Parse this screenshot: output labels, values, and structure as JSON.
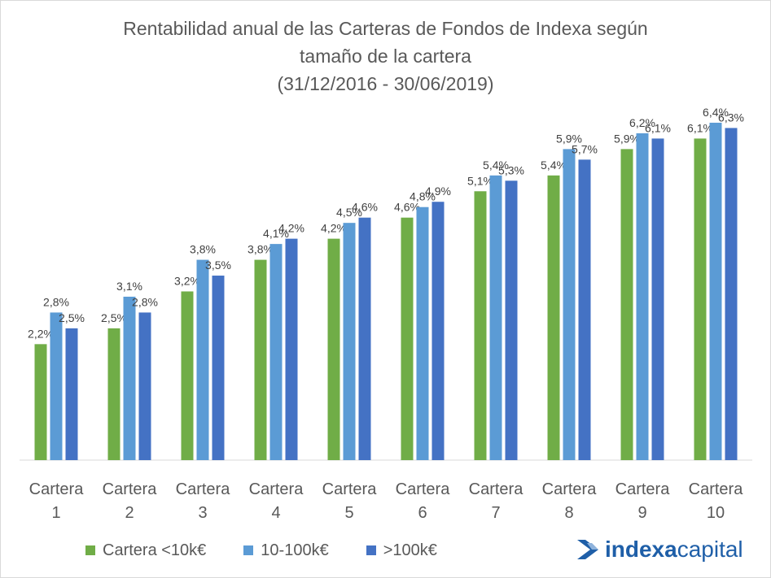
{
  "title": {
    "line1": "Rentabilidad anual de las Carteras de Fondos de Indexa según",
    "line2": "tamaño de la cartera",
    "line3": "(31/12/2016 - 30/06/2019)"
  },
  "logo": {
    "part1": "indexa",
    "part2": "capital"
  },
  "chart_data": {
    "type": "bar",
    "title": "Rentabilidad anual de las Carteras de Fondos de Indexa según tamaño de la cartera (31/12/2016 - 30/06/2019)",
    "categories": [
      [
        "Cartera",
        "1"
      ],
      [
        "Cartera",
        "2"
      ],
      [
        "Cartera",
        "3"
      ],
      [
        "Cartera",
        "4"
      ],
      [
        "Cartera",
        "5"
      ],
      [
        "Cartera",
        "6"
      ],
      [
        "Cartera",
        "7"
      ],
      [
        "Cartera",
        "8"
      ],
      [
        "Cartera",
        "9"
      ],
      [
        "Cartera",
        "10"
      ]
    ],
    "series": [
      {
        "name": "Cartera <10k€",
        "color": "#70ad47",
        "values": [
          2.2,
          2.5,
          3.2,
          3.8,
          4.2,
          4.6,
          5.1,
          5.4,
          5.9,
          6.1
        ],
        "labels": [
          "2,2%",
          "2,5%",
          "3,2%",
          "3,8%",
          "4,2%",
          "4,6%",
          "5,1%",
          "5,4%",
          "5,9%",
          "6,1%"
        ]
      },
      {
        "name": "10-100k€",
        "color": "#5b9bd5",
        "values": [
          2.8,
          3.1,
          3.8,
          4.1,
          4.5,
          4.8,
          5.4,
          5.9,
          6.2,
          6.4
        ],
        "labels": [
          "2,8%",
          "3,1%",
          "3,8%",
          "4,1%",
          "4,5%",
          "4,8%",
          "5,4%",
          "5,9%",
          "6,2%",
          "6,4%"
        ]
      },
      {
        "name": ">100k€",
        "color": "#4472c4",
        "values": [
          2.5,
          2.8,
          3.5,
          4.2,
          4.6,
          4.9,
          5.3,
          5.7,
          6.1,
          6.3
        ],
        "labels": [
          "2,5%",
          "2,8%",
          "3,5%",
          "4,2%",
          "4,6%",
          "4,9%",
          "5,3%",
          "5,7%",
          "6,1%",
          "6,3%"
        ]
      }
    ],
    "ylim": [
      0,
      6.5
    ],
    "ylabel": "",
    "xlabel": "",
    "grid": false,
    "legend": "bottom"
  }
}
